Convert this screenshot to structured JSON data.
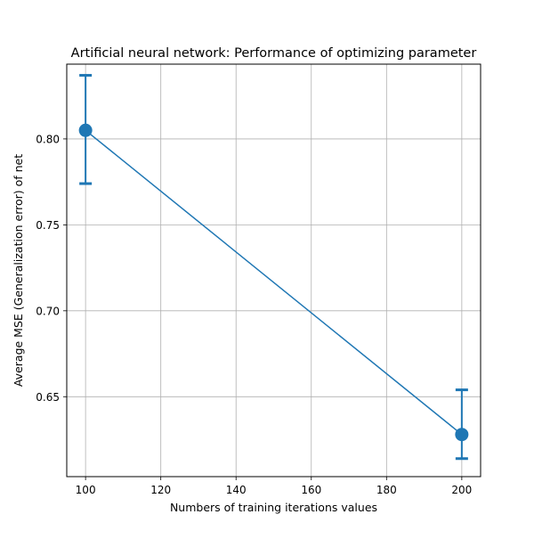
{
  "chart_data": {
    "type": "line",
    "title": "Artificial neural network: Performance of optimizing parameter",
    "xlabel": "Numbers of training iterations values",
    "ylabel": "Average MSE (Generalization error) of net",
    "xlim": [
      95,
      205
    ],
    "ylim": [
      0.6035,
      0.8435
    ],
    "xticks": [
      100,
      120,
      140,
      160,
      180,
      200
    ],
    "xtick_labels": [
      "100",
      "120",
      "140",
      "160",
      "180",
      "200"
    ],
    "yticks": [
      0.65,
      0.7,
      0.75,
      0.8
    ],
    "ytick_labels": [
      "0.65",
      "0.70",
      "0.75",
      "0.80"
    ],
    "grid": true,
    "series": [
      {
        "x": [
          100,
          200
        ],
        "y": [
          0.805,
          0.628
        ],
        "yerr_low": [
          0.774,
          0.614
        ],
        "yerr_high": [
          0.837,
          0.654
        ],
        "color": "#1f77b4",
        "marker": "circle"
      }
    ]
  }
}
